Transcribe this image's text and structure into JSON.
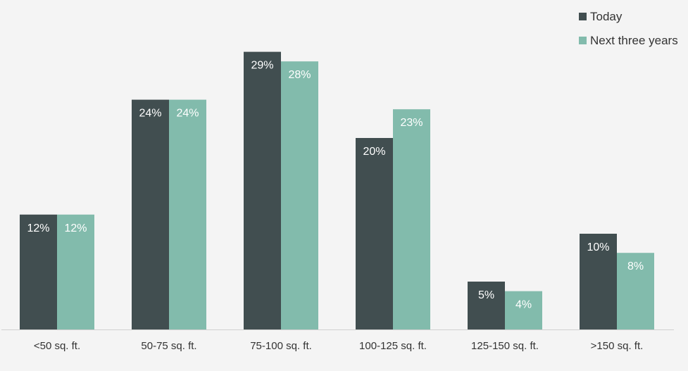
{
  "chart_data": {
    "type": "bar",
    "categories": [
      "<50 sq. ft.",
      "50-75 sq. ft.",
      "75-100 sq. ft.",
      "100-125 sq. ft.",
      "125-150 sq. ft.",
      ">150 sq. ft."
    ],
    "series": [
      {
        "name": "Today",
        "color": "#414e50",
        "values": [
          12,
          24,
          29,
          20,
          5,
          10
        ],
        "labels": [
          "12%",
          "24%",
          "29%",
          "20%",
          "5%",
          "10%"
        ]
      },
      {
        "name": "Next three years",
        "color": "#82bbac",
        "values": [
          12,
          24,
          28,
          23,
          4,
          8
        ],
        "labels": [
          "12%",
          "24%",
          "28%",
          "23%",
          "4%",
          "8%"
        ]
      }
    ],
    "ylim": [
      0,
      30
    ],
    "grid": false,
    "legend_position": "top-right",
    "baseline_color": "#d0d0d0"
  }
}
